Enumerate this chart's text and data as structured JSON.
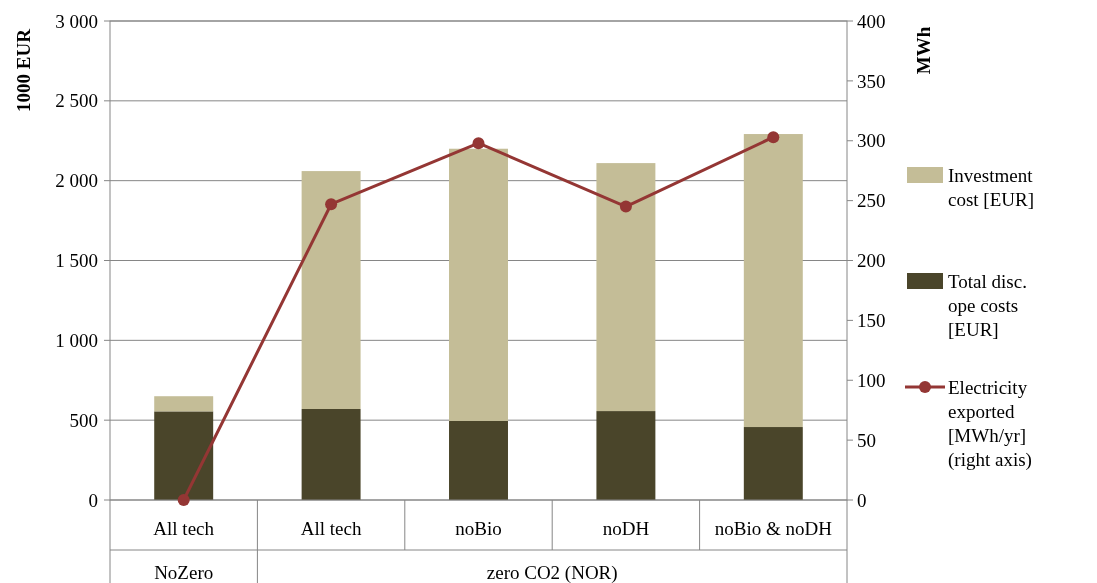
{
  "chart_data": {
    "type": "bar",
    "stacked": true,
    "categories": [
      "All tech",
      "All tech",
      "noBio",
      "noDH",
      "noBio & noDH"
    ],
    "annotations": [
      "NoZero",
      "zero CO2 (NOR)"
    ],
    "ylabel": "1000 EUR",
    "y2label": "MWh",
    "ylim": [
      0,
      3000
    ],
    "yticks": [
      {
        "value": 0,
        "label": "0"
      },
      {
        "value": 500,
        "label": "500"
      },
      {
        "value": 1000,
        "label": "1 000"
      },
      {
        "value": 1500,
        "label": "1 500"
      },
      {
        "value": 2000,
        "label": "2 000"
      },
      {
        "value": 2500,
        "label": "2 500"
      },
      {
        "value": 3000,
        "label": "3 000"
      }
    ],
    "y2lim": [
      0,
      400
    ],
    "y2ticks": [
      0,
      50,
      100,
      150,
      200,
      250,
      300,
      350,
      400
    ],
    "grid": "y",
    "legend": "right",
    "marker": "circle",
    "series": [
      {
        "name": "Total disc. ope costs [EUR]",
        "color": "#4a452a",
        "values": [
          555,
          570,
          495,
          557,
          457
        ]
      },
      {
        "name": "Investment cost [EUR]",
        "color": "#c4bd97",
        "values": [
          95,
          1490,
          1705,
          1553,
          1835
        ]
      },
      {
        "name": "Electricity exported [MWh/yr] (right axis)",
        "type": "line",
        "axis": "y2",
        "color": "#943634",
        "values": [
          0,
          247,
          298,
          245,
          303
        ]
      }
    ]
  }
}
